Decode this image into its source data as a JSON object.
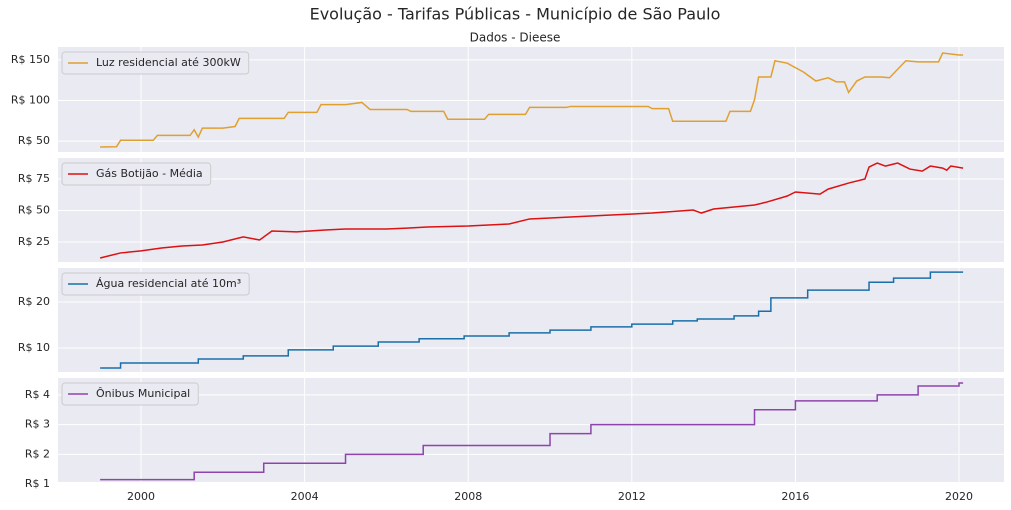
{
  "chart_data": [
    {
      "type": "line",
      "title": "Evolução - Tarifas Públicas - Município de São Paulo",
      "subtitle": "Dados - Dieese",
      "x": [
        1999.0,
        1999.4,
        1999.5,
        2000.3,
        2000.4,
        2001.2,
        2001.3,
        2001.4,
        2001.5,
        2002.0,
        2002.3,
        2002.4,
        2003.5,
        2003.6,
        2004.3,
        2004.4,
        2005.0,
        2005.4,
        2005.6,
        2006.5,
        2006.6,
        2007.4,
        2007.5,
        2008.4,
        2008.5,
        2009.4,
        2009.5,
        2010.4,
        2010.5,
        2012.4,
        2012.5,
        2012.9,
        2013.0,
        2014.3,
        2014.4,
        2014.9,
        2015.0,
        2015.1,
        2015.4,
        2015.5,
        2015.8,
        2016.2,
        2016.5,
        2016.8,
        2017.0,
        2017.2,
        2017.3,
        2017.5,
        2017.7,
        2018.1,
        2018.3,
        2018.7,
        2019.0,
        2019.5,
        2019.6,
        2020.0,
        2020.1
      ],
      "series": [
        {
          "name": "Luz residencial até 300kW",
          "color": "#e0a030",
          "values": [
            42.7,
            43,
            51,
            51,
            57,
            57,
            64,
            55,
            66,
            66,
            68,
            78,
            78,
            85.4,
            85.4,
            95,
            95,
            97.6,
            89,
            89,
            86.6,
            86.6,
            77,
            77,
            83,
            83,
            91.5,
            91.5,
            92.7,
            92.7,
            90,
            90,
            74.4,
            74.4,
            86.6,
            86.6,
            101,
            129,
            129,
            149,
            146,
            135,
            124,
            128,
            123,
            123,
            110,
            124,
            129,
            129,
            128,
            149,
            147.6,
            147.6,
            158.5,
            156,
            156
          ]
        }
      ],
      "xlim": [
        1997.97,
        2021.1
      ],
      "ylim": [
        36.6,
        165.9
      ],
      "yticks": [
        {
          "value": 50,
          "label": "R$ 50"
        },
        {
          "value": 100,
          "label": "R$ 100"
        },
        {
          "value": 150,
          "label": "R$ 150"
        }
      ]
    },
    {
      "type": "line",
      "x": [
        1999.0,
        1999.5,
        2000.0,
        2000.5,
        2001.0,
        2001.5,
        2002.0,
        2002.5,
        2002.9,
        2003.2,
        2003.8,
        2004.5,
        2005.0,
        2006.0,
        2006.5,
        2007.0,
        2008.0,
        2009.0,
        2009.5,
        2010.5,
        2011.5,
        2012.5,
        2013.5,
        2013.7,
        2014.0,
        2015.0,
        2015.3,
        2015.8,
        2016.0,
        2016.6,
        2016.8,
        2017.3,
        2017.7,
        2017.8,
        2018.0,
        2018.2,
        2018.5,
        2018.8,
        2019.1,
        2019.3,
        2019.6,
        2019.7,
        2019.8,
        2020.1
      ],
      "series": [
        {
          "name": "Gás Botijão - Média",
          "color": "#dd1111",
          "values": [
            12.3,
            16.3,
            17.9,
            20.2,
            21.8,
            22.6,
            25,
            29,
            26.6,
            33.7,
            33,
            34.5,
            35.3,
            35.3,
            36,
            36.9,
            37.7,
            39.3,
            43.3,
            44.8,
            46.4,
            48,
            50.4,
            48,
            51.2,
            54.4,
            56.7,
            61.5,
            64.7,
            63,
            67,
            71.8,
            75,
            84.5,
            87.7,
            85.3,
            87.7,
            82.9,
            81.3,
            85.3,
            83.7,
            82,
            85.3,
            83.7
          ]
        }
      ],
      "xlim": [
        1997.97,
        2021.1
      ],
      "ylim": [
        9.1,
        91.7
      ],
      "yticks": [
        {
          "value": 25,
          "label": "R$ 25"
        },
        {
          "value": 50,
          "label": "R$ 50"
        },
        {
          "value": 75,
          "label": "R$ 75"
        }
      ]
    },
    {
      "type": "line",
      "step": true,
      "x": [
        1999.0,
        1999.5,
        2001.4,
        2002.5,
        2003.6,
        2004.7,
        2005.8,
        2006.8,
        2007.9,
        2009.0,
        2010.0,
        2011.0,
        2012.0,
        2013.0,
        2013.6,
        2014.5,
        2015.1,
        2015.4,
        2016.3,
        2017.8,
        2018.4,
        2019.3,
        2020.1
      ],
      "series": [
        {
          "name": "Água residencial até 10m³",
          "color": "#1a6fa8",
          "values": [
            5.65,
            6.74,
            7.6,
            8.3,
            9.6,
            10.4,
            11.3,
            12,
            12.6,
            13.3,
            13.9,
            14.6,
            15.2,
            15.9,
            16.3,
            17,
            18,
            20.9,
            22.6,
            24.3,
            25.2,
            26.5,
            26.5
          ]
        }
      ],
      "xlim": [
        1997.97,
        2021.1
      ],
      "ylim": [
        4.78,
        27.4
      ],
      "yticks": [
        {
          "value": 10,
          "label": "R$ 10"
        },
        {
          "value": 20,
          "label": "R$ 20"
        }
      ]
    },
    {
      "type": "line",
      "step": true,
      "x": [
        1999.0,
        2001.3,
        2003.0,
        2005.0,
        2006.9,
        2010.0,
        2011.0,
        2015.0,
        2016.0,
        2018.0,
        2019.0,
        2020.0,
        2020.1
      ],
      "series": [
        {
          "name": "Ônibus Municipal",
          "color": "#8e44ad",
          "values": [
            1.15,
            1.4,
            1.7,
            2.0,
            2.3,
            2.7,
            3.0,
            3.5,
            3.8,
            4.0,
            4.3,
            4.4,
            4.4
          ]
        }
      ],
      "xlim": [
        1997.97,
        2021.1
      ],
      "ylim": [
        1.07,
        4.57
      ],
      "yticks": [
        {
          "value": 1,
          "label": "R$ 1"
        },
        {
          "value": 2,
          "label": "R$ 2"
        },
        {
          "value": 3,
          "label": "R$ 3"
        },
        {
          "value": 4,
          "label": "R$ 4"
        }
      ],
      "xticks": [
        2000,
        2004,
        2008,
        2012,
        2016,
        2020
      ]
    }
  ]
}
